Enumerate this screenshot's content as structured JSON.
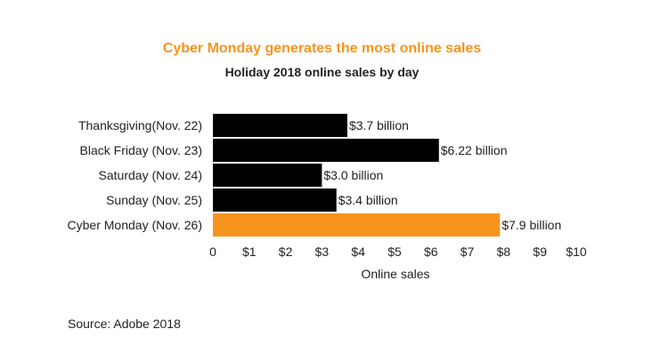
{
  "chart_data": {
    "type": "bar",
    "orientation": "horizontal",
    "title": "Cyber Monday generates the most online sales",
    "subtitle": "Holiday 2018 online sales by day",
    "xlabel": "Online sales",
    "ylabel": "",
    "categories": [
      "Thanksgiving(Nov. 22)",
      "Black Friday (Nov. 23)",
      "Saturday (Nov. 24)",
      "Sunday (Nov. 25)",
      "Cyber Monday (Nov. 26)"
    ],
    "values": [
      3.7,
      6.22,
      3.0,
      3.4,
      7.9
    ],
    "data_labels": [
      "$3.7 billion",
      "$6.22 billion",
      "$3.0 billion",
      "$3.4 billion",
      "$7.9 billion"
    ],
    "bar_colors": [
      "#000000",
      "#000000",
      "#000000",
      "#000000",
      "#f7941d"
    ],
    "x_ticks": [
      {
        "value": 0,
        "label": "0"
      },
      {
        "value": 1,
        "label": "$1"
      },
      {
        "value": 2,
        "label": "$2"
      },
      {
        "value": 3,
        "label": "$3"
      },
      {
        "value": 4,
        "label": "$4"
      },
      {
        "value": 5,
        "label": "$5"
      },
      {
        "value": 6,
        "label": "$6"
      },
      {
        "value": 7,
        "label": "$7"
      },
      {
        "value": 8,
        "label": "$8"
      },
      {
        "value": 9,
        "label": "$9"
      },
      {
        "value": 10,
        "label": "$10"
      }
    ],
    "xlim": [
      0,
      10
    ],
    "grid": false,
    "legend": "none"
  },
  "source": "Source: Adobe 2018",
  "colors": {
    "title": "#f7941d",
    "highlight_bar": "#f7941d",
    "default_bar": "#000000",
    "text": "#222222"
  }
}
